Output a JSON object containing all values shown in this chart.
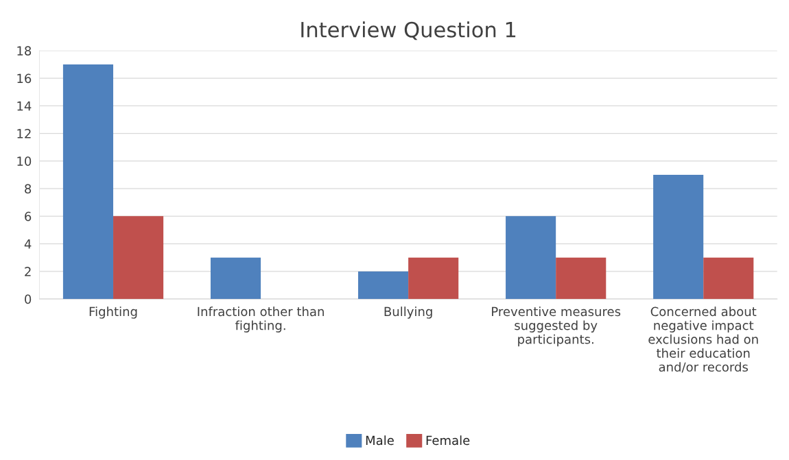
{
  "chart_data": {
    "type": "bar",
    "title": "Interview Question 1",
    "categories": [
      "Fighting",
      "Infraction other than\nfighting.",
      "Bullying",
      "Preventive measures\nsuggested by\nparticipants.",
      "Concerned about\nnegative impact\nexclusions had on\ntheir education\nand/or records"
    ],
    "series": [
      {
        "name": "Male",
        "color": "#4f81bd",
        "values": [
          17,
          3,
          2,
          6,
          9
        ]
      },
      {
        "name": "Female",
        "color": "#c0504d",
        "values": [
          6,
          0,
          3,
          3,
          3
        ]
      }
    ],
    "ylim": [
      0,
      18
    ],
    "yticks": [
      0,
      2,
      4,
      6,
      8,
      10,
      12,
      14,
      16,
      18
    ],
    "grid": "y",
    "legend": "bottom"
  }
}
